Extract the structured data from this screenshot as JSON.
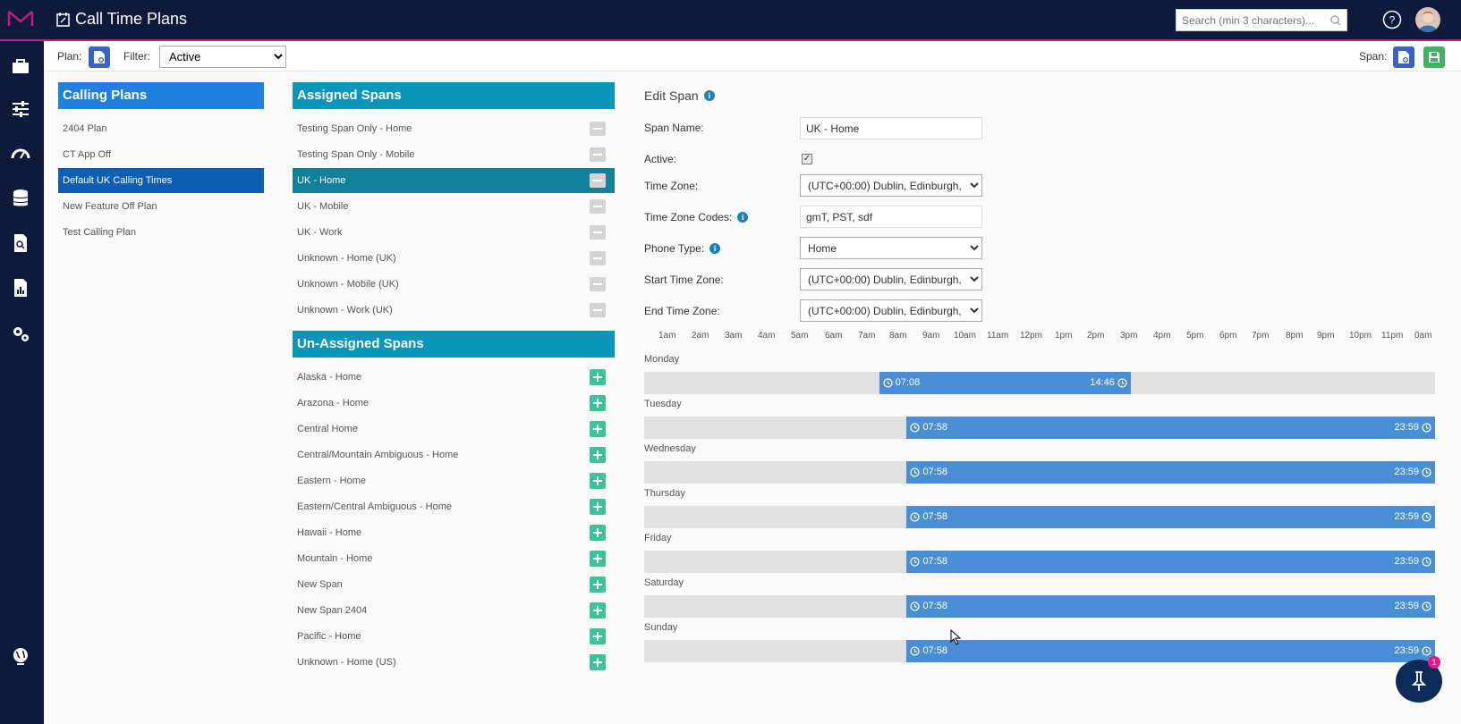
{
  "header": {
    "title": "Call Time Plans",
    "search_placeholder": "Search (min 3 characters)..."
  },
  "toolbar": {
    "plan_label": "Plan:",
    "filter_label": "Filter:",
    "filter_value": "Active",
    "span_label": "Span:"
  },
  "calling_plans": {
    "title": "Calling Plans",
    "items": [
      "2404 Plan",
      "CT App Off",
      "Default UK Calling Times",
      "New Feature Off Plan",
      "Test Calling Plan"
    ],
    "selected": "Default UK Calling Times"
  },
  "assigned_spans": {
    "title": "Assigned Spans",
    "items": [
      "Testing Span Only - Home",
      "Testing Span Only - Mobile",
      "UK - Home",
      "UK - Mobile",
      "UK - Work",
      "Unknown - Home (UK)",
      "Unknown - Mobile (UK)",
      "Unknown - Work (UK)"
    ],
    "selected": "UK - Home"
  },
  "unassigned_spans": {
    "title": "Un-Assigned Spans",
    "items": [
      "Alaska - Home",
      "Arazona - Home",
      "Central Home",
      "Central/Mountain Ambiguous - Home",
      "Eastern - Home",
      "Eastern/Central Ambiguous - Home",
      "Hawaii - Home",
      "Mountain - Home",
      "New Span",
      "New Span 2404",
      "Pacific - Home",
      "Unknown - Home (US)"
    ]
  },
  "edit_span": {
    "title": "Edit Span",
    "span_name_label": "Span Name:",
    "span_name": "UK - Home",
    "active_label": "Active:",
    "active": true,
    "time_zone_label": "Time Zone:",
    "time_zone": "(UTC+00:00) Dublin, Edinburgh,",
    "tz_codes_label": "Time Zone Codes:",
    "tz_codes": "gmT, PST, sdf",
    "phone_type_label": "Phone Type:",
    "phone_type": "Home",
    "start_tz_label": "Start Time Zone:",
    "start_tz": "(UTC+00:00) Dublin, Edinburgh,",
    "end_tz_label": "End Time Zone:",
    "end_tz": "(UTC+00:00) Dublin, Edinburgh,"
  },
  "timeline": {
    "hours": [
      "1am",
      "2am",
      "3am",
      "4am",
      "5am",
      "6am",
      "7am",
      "8am",
      "9am",
      "10am",
      "11am",
      "12pm",
      "1pm",
      "2pm",
      "3pm",
      "4pm",
      "5pm",
      "6pm",
      "7pm",
      "8pm",
      "9pm",
      "10pm",
      "11pm",
      "0am"
    ],
    "days": [
      {
        "day": "Monday",
        "start": "07:08",
        "end": "14:46"
      },
      {
        "day": "Tuesday",
        "start": "07:58",
        "end": "23:59"
      },
      {
        "day": "Wednesday",
        "start": "07:58",
        "end": "23:59"
      },
      {
        "day": "Thursday",
        "start": "07:58",
        "end": "23:59"
      },
      {
        "day": "Friday",
        "start": "07:58",
        "end": "23:59"
      },
      {
        "day": "Saturday",
        "start": "07:58",
        "end": "23:59"
      },
      {
        "day": "Sunday",
        "start": "07:58",
        "end": "23:59"
      }
    ]
  },
  "notification_count": "1",
  "colors": {
    "nav": "#0e1a3c",
    "accent": "#c2188b",
    "plans_header": "#1f80e0",
    "spans_header": "#0a96b8",
    "bar": "#4a8fd6"
  }
}
